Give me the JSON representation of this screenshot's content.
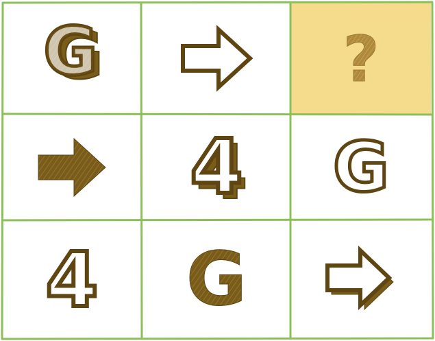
{
  "puzzle": {
    "rows": [
      [
        {
          "symbol": "G",
          "style": "outline-shadow"
        },
        {
          "symbol": "arrow",
          "style": "outline"
        },
        {
          "symbol": "?",
          "style": "missing"
        }
      ],
      [
        {
          "symbol": "arrow",
          "style": "filled"
        },
        {
          "symbol": "4",
          "style": "outline-shadow"
        },
        {
          "symbol": "G",
          "style": "outline"
        }
      ],
      [
        {
          "symbol": "4",
          "style": "outline"
        },
        {
          "symbol": "G",
          "style": "filled"
        },
        {
          "symbol": "arrow",
          "style": "outline-shadow"
        }
      ]
    ]
  },
  "colors": {
    "grid_line": "#8cbf5a",
    "symbol_fill": "#7a5c1a",
    "symbol_outline": "#5e4512",
    "missing_cell_bg": "#f5dc8c",
    "missing_mark": "#b08a3c",
    "cell_bg": "#ffffff"
  },
  "icons": {
    "arrow": "right-arrow-icon",
    "missing": "question-mark-icon"
  }
}
